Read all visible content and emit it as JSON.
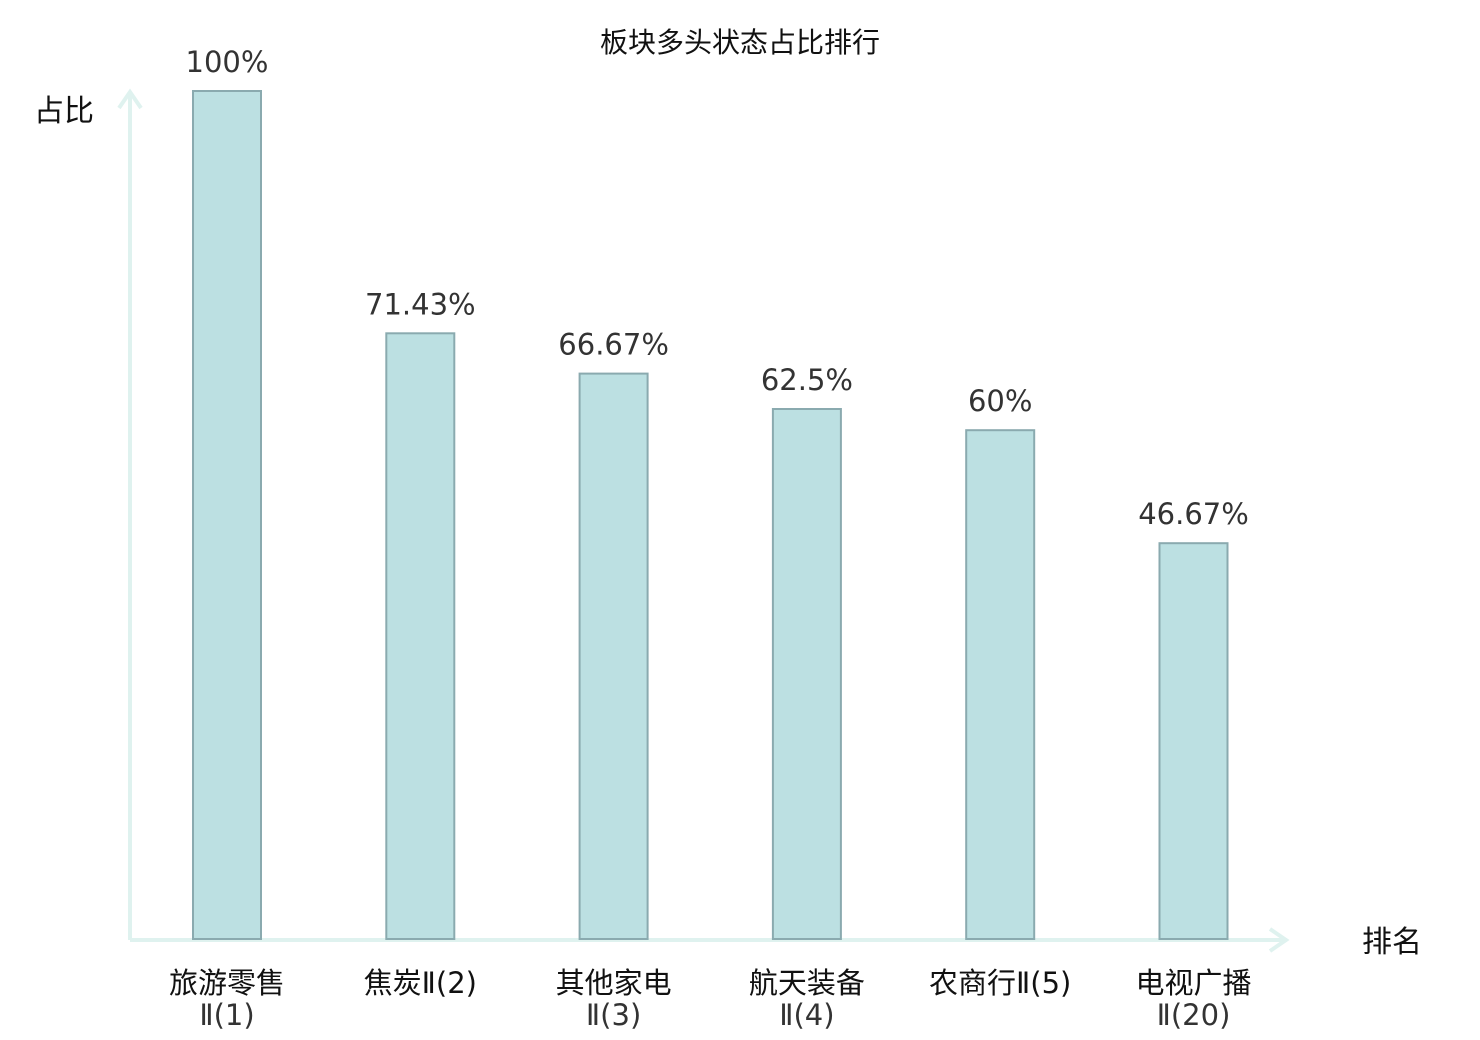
{
  "chart_data": {
    "type": "bar",
    "title": "板块多头状态占比排行",
    "ylabel": "占比",
    "xlabel": "排名",
    "categories": [
      {
        "line1": "旅游零售",
        "line2": "Ⅱ(1)",
        "highlight": false
      },
      {
        "line1": "焦炭Ⅱ(2)",
        "line2": "",
        "highlight": false
      },
      {
        "line1": "其他家电",
        "line2": "Ⅱ(3)",
        "highlight": false
      },
      {
        "line1": "航天装备",
        "line2": "Ⅱ(4)",
        "highlight": false
      },
      {
        "line1": "农商行Ⅱ(5)",
        "line2": "",
        "highlight": false
      },
      {
        "line1": "电视广播",
        "line2": "Ⅱ(20)",
        "highlight": true
      }
    ],
    "values": [
      100,
      71.43,
      66.67,
      62.5,
      60,
      46.67
    ],
    "value_labels": [
      "100%",
      "71.43%",
      "66.67%",
      "62.5%",
      "60%",
      "46.67%"
    ],
    "ylim": [
      0,
      100
    ],
    "grid": false
  },
  "colors": {
    "bar_fill": "#bce0e2",
    "bar_stroke": "#8aaaaf",
    "axis": "#dff2ef",
    "highlight": "#e02020",
    "text": "#111111"
  }
}
